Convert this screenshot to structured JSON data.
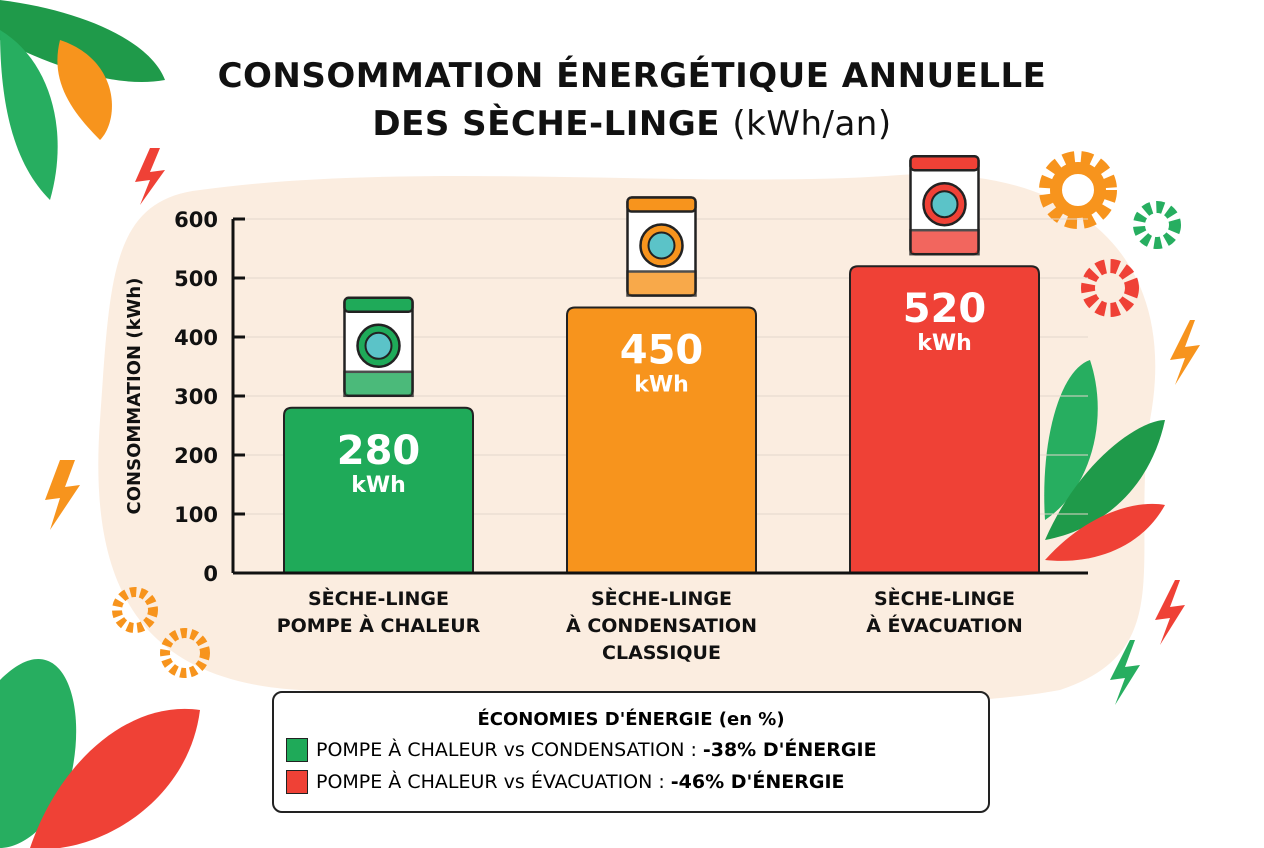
{
  "title": {
    "line1": "CONSOMMATION ÉNERGÉTIQUE ANNUELLE",
    "line2": "DES SÈCHE-LINGE",
    "unit": "(kWh/an)"
  },
  "chart_data": {
    "type": "bar",
    "categories": [
      [
        "SÈCHE-LINGE",
        "POMPE À CHALEUR"
      ],
      [
        "SÈCHE-LINGE",
        "À CONDENSATION",
        "CLASSIQUE"
      ],
      [
        "SÈCHE-LINGE",
        "À ÉVACUATION"
      ]
    ],
    "values": [
      280,
      450,
      520
    ],
    "value_labels": [
      "280",
      "450",
      "520"
    ],
    "value_unit": "kWh",
    "colors": [
      "#1faa59",
      "#f7941d",
      "#ef4136"
    ],
    "ylabel": "CONSOMMATION (kWh)",
    "ylim": [
      0,
      600
    ],
    "yticks": [
      0,
      100,
      200,
      300,
      400,
      500,
      600
    ],
    "grid": true
  },
  "legend": {
    "title": "ÉCONOMIES D'ÉNERGIE (en %)",
    "items": [
      {
        "text": "POMPE À CHALEUR vs CONDENSATION :",
        "value": "-38% D'ÉNERGIE",
        "color": "#1faa59"
      },
      {
        "text": "POMPE À CHALEUR vs ÉVACUATION :",
        "value": "-46% D'ÉNERGIE",
        "color": "#ef4136"
      }
    ]
  },
  "icons": [
    "dryer-icon",
    "leaf-icon",
    "gear-icon",
    "lightning-icon"
  ]
}
